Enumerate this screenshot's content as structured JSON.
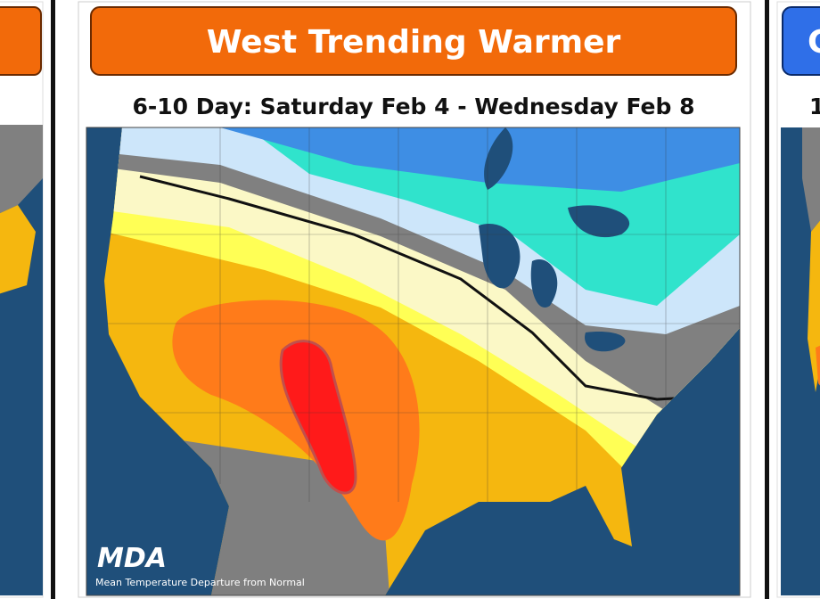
{
  "panel": {
    "title": "West Trending Warmer",
    "subtitle": "6-10 Day: Saturday Feb 4 - Wednesday Feb 8",
    "logo": "MDA",
    "caption": "Mean Temperature Departure from Normal"
  },
  "right_panel": {
    "title": "C",
    "subtitle": "1"
  }
}
